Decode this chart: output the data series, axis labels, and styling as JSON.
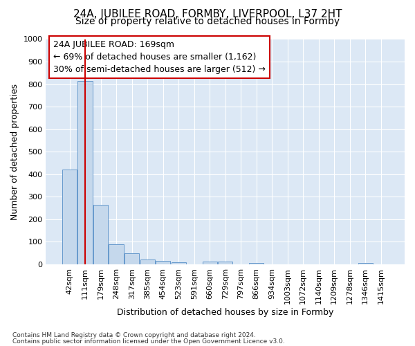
{
  "title": "24A, JUBILEE ROAD, FORMBY, LIVERPOOL, L37 2HT",
  "subtitle": "Size of property relative to detached houses in Formby",
  "xlabel": "Distribution of detached houses by size in Formby",
  "ylabel": "Number of detached properties",
  "footer_line1": "Contains HM Land Registry data © Crown copyright and database right 2024.",
  "footer_line2": "Contains public sector information licensed under the Open Government Licence v3.0.",
  "categories": [
    "42sqm",
    "111sqm",
    "179sqm",
    "248sqm",
    "317sqm",
    "385sqm",
    "454sqm",
    "523sqm",
    "591sqm",
    "660sqm",
    "729sqm",
    "797sqm",
    "866sqm",
    "934sqm",
    "1003sqm",
    "1072sqm",
    "1140sqm",
    "1209sqm",
    "1278sqm",
    "1346sqm",
    "1415sqm"
  ],
  "values": [
    420,
    815,
    265,
    90,
    48,
    20,
    16,
    10,
    0,
    12,
    12,
    0,
    5,
    0,
    0,
    0,
    0,
    0,
    0,
    5,
    0
  ],
  "bar_color": "#c5d8ec",
  "bar_edge_color": "#6699cc",
  "highlight_bar_index": 1,
  "highlight_line_color": "#cc0000",
  "annotation_box_text": "24A JUBILEE ROAD: 169sqm\n← 69% of detached houses are smaller (1,162)\n30% of semi-detached houses are larger (512) →",
  "ylim": [
    0,
    1000
  ],
  "yticks": [
    0,
    100,
    200,
    300,
    400,
    500,
    600,
    700,
    800,
    900,
    1000
  ],
  "bg_color": "#ffffff",
  "plot_bg_color": "#dce8f5",
  "grid_color": "#ffffff",
  "title_fontsize": 11,
  "subtitle_fontsize": 10,
  "axis_label_fontsize": 9,
  "tick_fontsize": 8,
  "annotation_fontsize": 9
}
